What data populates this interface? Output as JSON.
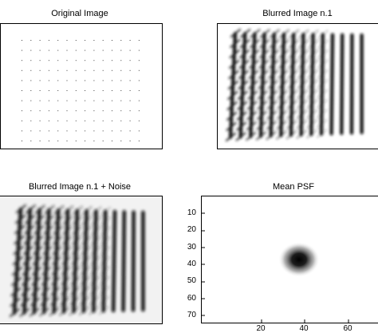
{
  "panels": {
    "original": {
      "title": "Original Image"
    },
    "blurred": {
      "title": "Blurred Image n.1"
    },
    "blurred_noise": {
      "title": "Blurred Image n.1 + Noise"
    },
    "psf": {
      "title": "Mean PSF",
      "y_ticks": [
        "10",
        "20",
        "30",
        "40",
        "50",
        "60",
        "70"
      ],
      "x_ticks": [
        "20",
        "40",
        "60"
      ]
    }
  }
}
